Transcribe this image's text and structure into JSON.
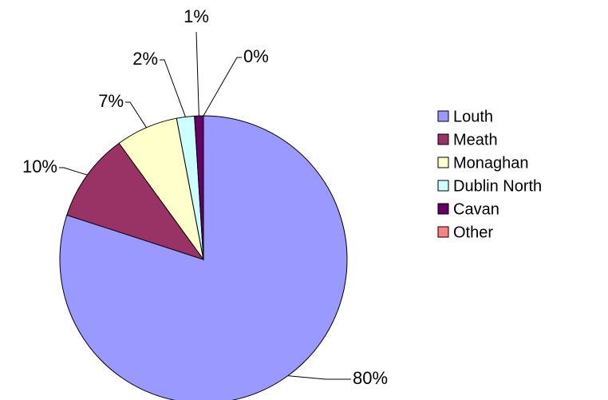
{
  "chart_data": {
    "type": "pie",
    "categories": [
      "Louth",
      "Meath",
      "Monaghan",
      "Dublin North",
      "Cavan",
      "Other"
    ],
    "values": [
      80,
      10,
      7,
      2,
      1,
      0
    ],
    "value_labels": [
      "80%",
      "10%",
      "7%",
      "2%",
      "1%",
      "0%"
    ],
    "colors": [
      "#9999ff",
      "#993366",
      "#ffffcc",
      "#ccffff",
      "#660066",
      "#ff8080"
    ],
    "legend": "right"
  }
}
